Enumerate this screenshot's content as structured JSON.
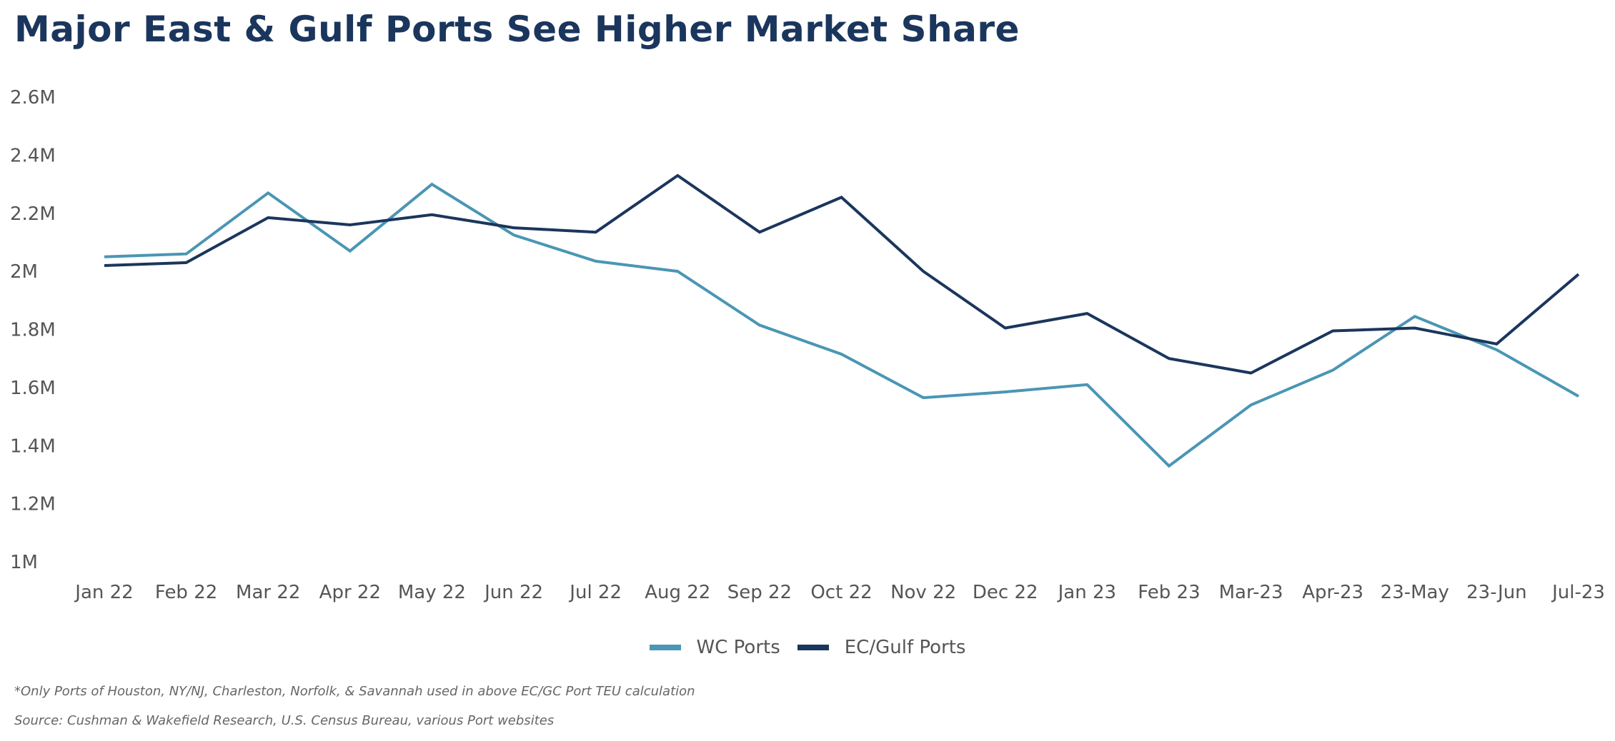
{
  "chart_data": {
    "type": "line",
    "title": "Major East & Gulf Ports See Higher Market Share",
    "xlabel": "",
    "ylabel": "",
    "ylim": [
      1000000,
      2600000
    ],
    "yticks": [
      1000000,
      1200000,
      1400000,
      1600000,
      1800000,
      2000000,
      2200000,
      2400000,
      2600000
    ],
    "ytick_labels": [
      "1M",
      "1.2M",
      "1.4M",
      "1.6M",
      "1.8M",
      "2M",
      "2.2M",
      "2.4M",
      "2.6M"
    ],
    "grid": false,
    "legend_position": "bottom-center",
    "categories": [
      "Jan 22",
      "Feb 22",
      "Mar 22",
      "Apr 22",
      "May 22",
      "Jun 22",
      "Jul 22",
      "Aug 22",
      "Sep 22",
      "Oct 22",
      "Nov 22",
      "Dec 22",
      "Jan 23",
      "Feb 23",
      "Mar-23",
      "Apr-23",
      "23-May",
      "23-Jun",
      "Jul-23"
    ],
    "series": [
      {
        "name": "WC Ports",
        "color": "#4a96b4",
        "values": [
          2050000,
          2060000,
          2270000,
          2070000,
          2300000,
          2125000,
          2035000,
          2000000,
          1815000,
          1715000,
          1565000,
          1585000,
          1610000,
          1330000,
          1540000,
          1660000,
          1845000,
          1730000,
          1570000
        ]
      },
      {
        "name": "EC/Gulf Ports",
        "color": "#1b365d",
        "values": [
          2020000,
          2030000,
          2185000,
          2160000,
          2195000,
          2150000,
          2135000,
          2330000,
          2135000,
          2255000,
          2000000,
          1805000,
          1855000,
          1700000,
          1650000,
          1795000,
          1805000,
          1750000,
          1990000
        ]
      }
    ]
  },
  "footnotes": {
    "note": "*Only Ports of Houston, NY/NJ, Charleston, Norfolk, & Savannah used in above EC/GC Port TEU calculation",
    "source": "Source: Cushman & Wakefield Research, U.S. Census Bureau, various Port websites"
  }
}
